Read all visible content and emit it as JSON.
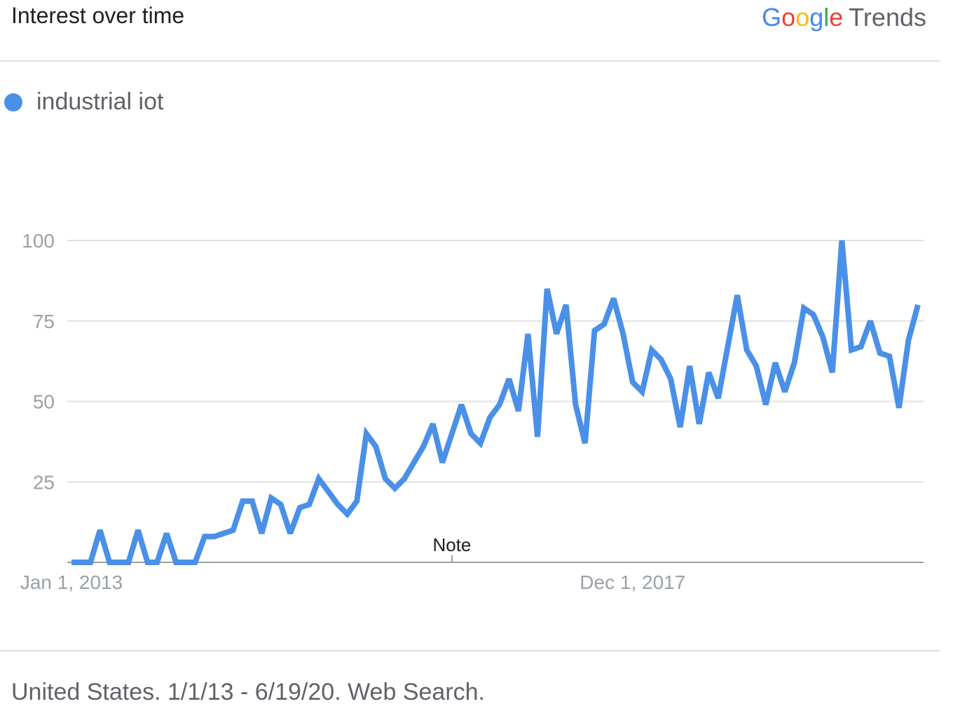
{
  "header": {
    "title": "Interest over time",
    "logo_letters": [
      "G",
      "o",
      "o",
      "g",
      "l",
      "e"
    ],
    "logo_product": "Trends"
  },
  "legend": {
    "label": "industrial iot",
    "color": "#4a90e8"
  },
  "footer": {
    "text": "United States. 1/1/13 - 6/19/20. Web Search."
  },
  "colors": {
    "series": "#4a90e8",
    "grid": "#e0e0e0",
    "axis": "#9e9e9e"
  },
  "chart_data": {
    "type": "line",
    "title": "Interest over time",
    "ylim": [
      0,
      100
    ],
    "yticks": [
      25,
      50,
      75,
      100
    ],
    "xtick_labels": [
      {
        "label": "Jan 1, 2013",
        "index": 0
      },
      {
        "label": "Dec 1, 2017",
        "index": 59
      }
    ],
    "annotations": [
      {
        "text": "Note",
        "index": 40
      }
    ],
    "grid": true,
    "legend_position": "top-left",
    "series": [
      {
        "name": "industrial iot",
        "values": [
          0,
          0,
          0,
          10,
          0,
          0,
          0,
          10,
          0,
          0,
          9,
          0,
          0,
          0,
          8,
          8,
          9,
          10,
          19,
          19,
          9,
          20,
          18,
          9,
          17,
          18,
          26,
          22,
          18,
          15,
          19,
          40,
          36,
          26,
          23,
          26,
          31,
          36,
          43,
          31,
          40,
          49,
          40,
          37,
          45,
          49,
          57,
          47,
          71,
          39,
          85,
          71,
          80,
          49,
          37,
          72,
          74,
          82,
          71,
          56,
          53,
          66,
          63,
          57,
          42,
          61,
          43,
          59,
          51,
          67,
          83,
          66,
          61,
          49,
          62,
          53,
          62,
          79,
          77,
          70,
          59,
          100,
          66,
          67,
          75,
          65,
          64,
          48,
          69,
          80
        ]
      }
    ]
  }
}
